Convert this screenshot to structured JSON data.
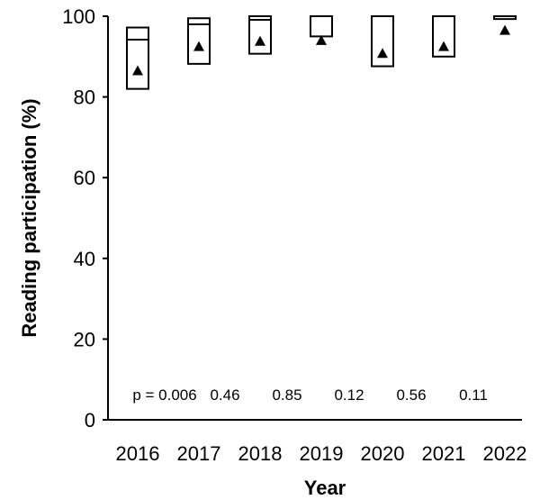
{
  "chart_data": {
    "type": "box",
    "xlabel": "Year",
    "ylabel": "Reading participation (%)",
    "ylim": [
      0,
      100
    ],
    "y_ticks": [
      0,
      20,
      40,
      60,
      80,
      100
    ],
    "grid": false,
    "categories": [
      "2016",
      "2017",
      "2018",
      "2019",
      "2020",
      "2021",
      "2022"
    ],
    "boxes": [
      {
        "year": "2016",
        "q1": 82,
        "median": 94.2,
        "q3": 97.2,
        "mean": 86.5
      },
      {
        "year": "2017",
        "q1": 88.2,
        "median": 98,
        "q3": 99.5,
        "mean": 92.5
      },
      {
        "year": "2018",
        "q1": 90.7,
        "median": 99.1,
        "q3": 100,
        "mean": 93.8
      },
      {
        "year": "2019",
        "q1": 95,
        "median": 100,
        "q3": 100,
        "mean": 94
      },
      {
        "year": "2020",
        "q1": 87.6,
        "median": 100,
        "q3": 100,
        "mean": 90.8
      },
      {
        "year": "2021",
        "q1": 90,
        "median": 100,
        "q3": 100,
        "mean": 92.5
      },
      {
        "year": "2022",
        "q1": 99.3,
        "median": 100,
        "q3": 100,
        "mean": 96.5
      }
    ],
    "annotations": [
      "p = 0.006",
      "0.46",
      "0.85",
      "0.12",
      "0.56",
      "0.11"
    ]
  }
}
